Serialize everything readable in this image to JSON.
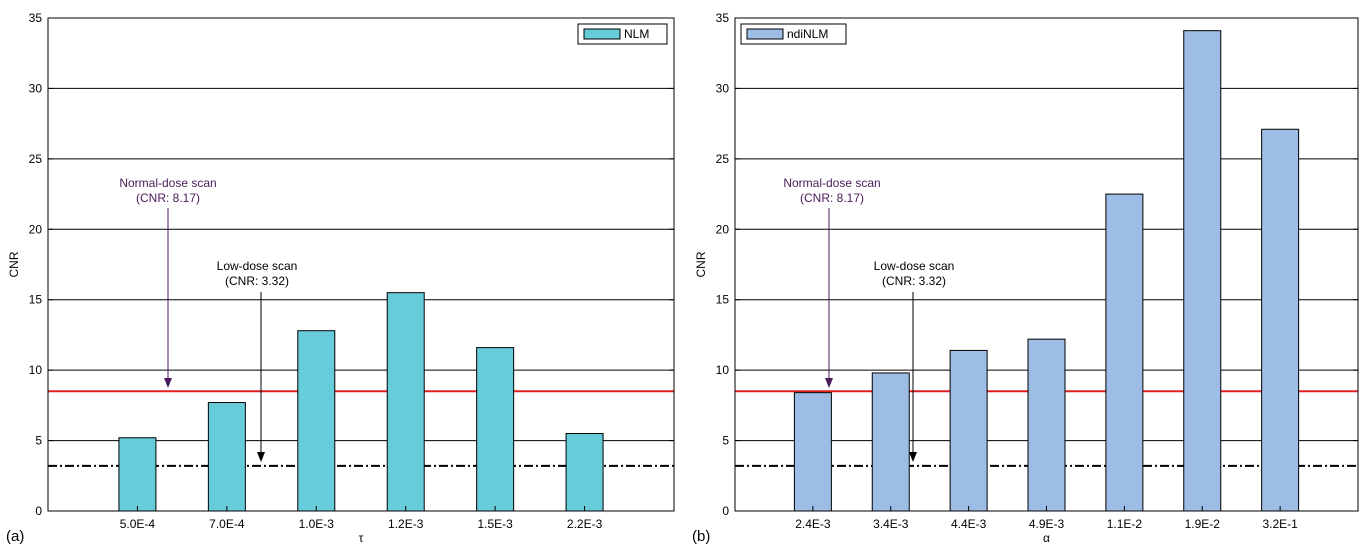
{
  "chart_data": [
    {
      "type": "bar",
      "panel_label": "(a)",
      "categories": [
        "5.0E-4",
        "7.0E-4",
        "1.0E-3",
        "1.2E-3",
        "1.5E-3",
        "2.2E-3"
      ],
      "series": [
        {
          "name": "NLM",
          "values": [
            5.2,
            7.7,
            12.8,
            15.5,
            11.6,
            5.5
          ]
        }
      ],
      "xlabel": "τ",
      "ylabel": "CNR",
      "ylim": [
        0,
        35
      ],
      "yticks": [
        0,
        5,
        10,
        15,
        20,
        25,
        30,
        35
      ],
      "grid": "horizontal",
      "legend": "top-right",
      "bar_color": "#66ccd9",
      "reference_lines": [
        {
          "value": 8.5,
          "style": "solid",
          "color": "#e02020"
        },
        {
          "value": 3.2,
          "style": "dash-dot",
          "color": "#000000"
        }
      ],
      "annotations": [
        {
          "lines": [
            "Normal-dose scan",
            "(CNR: 8.17)"
          ],
          "color": "#4a1a5a"
        },
        {
          "lines": [
            "Low-dose scan",
            "(CNR: 3.32)"
          ],
          "color": "#000000"
        }
      ]
    },
    {
      "type": "bar",
      "panel_label": "(b)",
      "categories": [
        "2.4E-3",
        "3.4E-3",
        "4.4E-3",
        "4.9E-3",
        "1.1E-2",
        "1.9E-2",
        "3.2E-1"
      ],
      "series": [
        {
          "name": "ndiNLM",
          "values": [
            8.4,
            9.8,
            11.4,
            12.2,
            22.5,
            34.1,
            27.1
          ]
        }
      ],
      "xlabel": "α",
      "ylabel": "CNR",
      "ylim": [
        0,
        35
      ],
      "yticks": [
        0,
        5,
        10,
        15,
        20,
        25,
        30,
        35
      ],
      "grid": "horizontal",
      "legend": "top-left",
      "bar_color": "#9dbde6",
      "reference_lines": [
        {
          "value": 8.5,
          "style": "solid",
          "color": "#e02020"
        },
        {
          "value": 3.2,
          "style": "dash-dot",
          "color": "#000000"
        }
      ],
      "annotations": [
        {
          "lines": [
            "Normal-dose scan",
            "(CNR: 8.17)"
          ],
          "color": "#4a1a5a"
        },
        {
          "lines": [
            "Low-dose scan",
            "(CNR: 3.32)"
          ],
          "color": "#000000"
        }
      ]
    }
  ]
}
